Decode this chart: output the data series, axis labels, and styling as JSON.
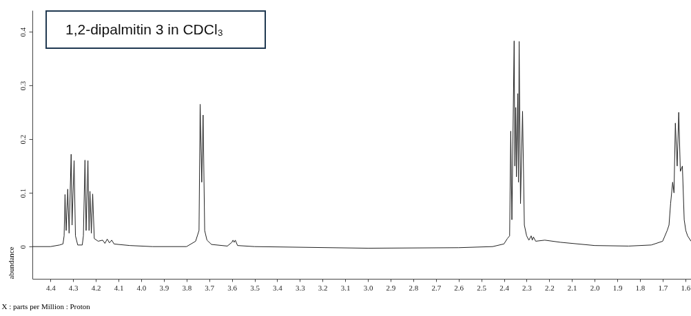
{
  "chart_data": {
    "type": "line",
    "title": "1,2-dipalmitin 3 in CDCl₃",
    "xlabel": "X : parts per Million : Proton",
    "ylabel": "abundance",
    "xlim": [
      4.48,
      1.575
    ],
    "ylim": [
      -0.06,
      0.44
    ],
    "xticks": [
      4.4,
      4.3,
      4.2,
      4.1,
      {
        "value": 4.0,
        "label": "4.0"
      },
      3.9,
      3.8,
      3.7,
      3.6,
      3.5,
      3.4,
      3.3,
      3.2,
      3.1,
      {
        "value": 3.0,
        "label": "3.0"
      },
      2.9,
      2.8,
      2.7,
      2.6,
      2.5,
      2.4,
      2.3,
      2.2,
      2.1,
      {
        "value": 2.0,
        "label": "2.0"
      },
      1.9,
      1.8,
      1.7,
      1.6
    ],
    "yticks": [
      0,
      0.1,
      0.2,
      0.3,
      0.4
    ],
    "grid": false,
    "line_style": "solid",
    "marker": "none",
    "series": [
      {
        "color": "#222222",
        "x": [
          4.48,
          4.4,
          4.36,
          4.345,
          4.34,
          4.336,
          4.331,
          4.324,
          4.318,
          4.309,
          4.305,
          4.296,
          4.29,
          4.28,
          4.26,
          4.255,
          4.248,
          4.243,
          4.235,
          4.23,
          4.226,
          4.22,
          4.214,
          4.207,
          4.19,
          4.17,
          4.16,
          4.15,
          4.14,
          4.13,
          4.12,
          4.1,
          4.05,
          3.95,
          3.8,
          3.76,
          3.745,
          3.74,
          3.733,
          3.727,
          3.72,
          3.71,
          3.69,
          3.62,
          3.6,
          3.595,
          3.59,
          3.585,
          3.575,
          3.5,
          3.0,
          2.6,
          2.45,
          2.4,
          2.385,
          2.375,
          2.37,
          2.365,
          2.355,
          2.352,
          2.348,
          2.345,
          2.339,
          2.336,
          2.333,
          2.327,
          2.318,
          2.31,
          2.3,
          2.29,
          2.28,
          2.275,
          2.27,
          2.26,
          2.22,
          2.15,
          2.0,
          1.85,
          1.75,
          1.7,
          1.68,
          1.672,
          1.665,
          1.656,
          1.65,
          1.644,
          1.636,
          1.629,
          1.622,
          1.613,
          1.605,
          1.598,
          1.59,
          1.575
        ],
        "values": [
          0,
          0,
          0.003,
          0.005,
          0.02,
          0.097,
          0.03,
          0.107,
          0.025,
          0.172,
          0.04,
          0.16,
          0.02,
          0.003,
          0.003,
          0.02,
          0.161,
          0.03,
          0.16,
          0.03,
          0.103,
          0.025,
          0.098,
          0.015,
          0.01,
          0.012,
          0.006,
          0.014,
          0.007,
          0.012,
          0.005,
          0.004,
          0.002,
          0,
          0,
          0.01,
          0.03,
          0.265,
          0.12,
          0.245,
          0.03,
          0.012,
          0.004,
          0.001,
          0.008,
          0.012,
          0.008,
          0.012,
          0.002,
          0,
          -0.003,
          -0.002,
          0,
          0.005,
          0.015,
          0.02,
          0.215,
          0.05,
          0.383,
          0.15,
          0.259,
          0.13,
          0.285,
          0.12,
          0.382,
          0.08,
          0.252,
          0.04,
          0.02,
          0.012,
          0.02,
          0.012,
          0.018,
          0.01,
          0.012,
          0.008,
          0.002,
          0.001,
          0.003,
          0.01,
          0.03,
          0.04,
          0.08,
          0.12,
          0.1,
          0.23,
          0.15,
          0.25,
          0.14,
          0.15,
          0.05,
          0.03,
          0.02,
          0.01
        ]
      }
    ]
  }
}
